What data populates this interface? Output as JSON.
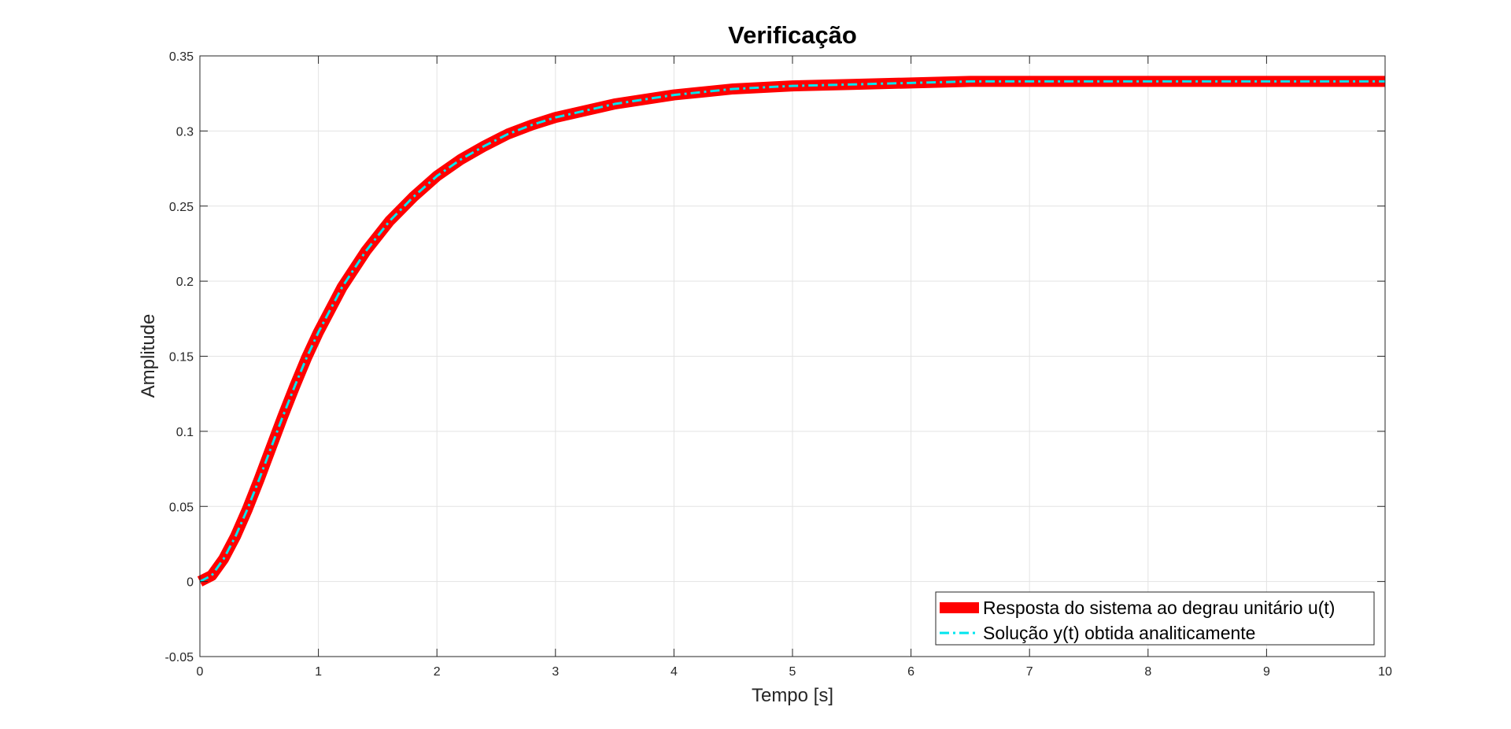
{
  "chart_data": {
    "type": "line",
    "title": "Verificação",
    "xlabel": "Tempo [s]",
    "ylabel": "Amplitude",
    "xlim": [
      0,
      10
    ],
    "ylim": [
      -0.05,
      0.35
    ],
    "xticks": [
      0,
      1,
      2,
      3,
      4,
      5,
      6,
      7,
      8,
      9,
      10
    ],
    "xtick_labels": [
      "0",
      "1",
      "2",
      "3",
      "4",
      "5",
      "6",
      "7",
      "8",
      "9",
      "10"
    ],
    "yticks": [
      -0.05,
      0,
      0.05,
      0.1,
      0.15,
      0.2,
      0.25,
      0.3,
      0.35
    ],
    "ytick_labels": [
      "-0.05",
      "0",
      "0.05",
      "0.1",
      "0.15",
      "0.2",
      "0.25",
      "0.3",
      "0.35"
    ],
    "grid": true,
    "legend_position": "bottom-right",
    "series": [
      {
        "name": "Resposta do sistema ao degrau unitário u(t)",
        "color": "#ff0000",
        "style": "solid-thick",
        "x": [
          0,
          0.1,
          0.2,
          0.3,
          0.4,
          0.5,
          0.6,
          0.7,
          0.8,
          0.9,
          1.0,
          1.2,
          1.4,
          1.6,
          1.8,
          2.0,
          2.2,
          2.4,
          2.6,
          2.8,
          3.0,
          3.5,
          4.0,
          4.5,
          5.0,
          5.5,
          6.0,
          6.5,
          7.0,
          7.5,
          8.0,
          8.5,
          9.0,
          9.5,
          10.0
        ],
        "y": [
          0,
          0.004,
          0.015,
          0.03,
          0.048,
          0.068,
          0.089,
          0.11,
          0.13,
          0.149,
          0.166,
          0.196,
          0.22,
          0.24,
          0.256,
          0.27,
          0.281,
          0.29,
          0.298,
          0.304,
          0.309,
          0.318,
          0.324,
          0.328,
          0.33,
          0.331,
          0.332,
          0.333,
          0.333,
          0.333,
          0.333,
          0.333,
          0.333,
          0.333,
          0.333
        ]
      },
      {
        "name": "Solução y(t) obtida analiticamente",
        "color": "#00e5ee",
        "style": "dash-dot",
        "x": [
          0,
          0.1,
          0.2,
          0.3,
          0.4,
          0.5,
          0.6,
          0.7,
          0.8,
          0.9,
          1.0,
          1.2,
          1.4,
          1.6,
          1.8,
          2.0,
          2.2,
          2.4,
          2.6,
          2.8,
          3.0,
          3.5,
          4.0,
          4.5,
          5.0,
          5.5,
          6.0,
          6.5,
          7.0,
          7.5,
          8.0,
          8.5,
          9.0,
          9.5,
          10.0
        ],
        "y": [
          0,
          0.004,
          0.015,
          0.03,
          0.048,
          0.068,
          0.089,
          0.11,
          0.13,
          0.149,
          0.166,
          0.196,
          0.22,
          0.24,
          0.256,
          0.27,
          0.281,
          0.29,
          0.298,
          0.304,
          0.309,
          0.318,
          0.324,
          0.328,
          0.33,
          0.331,
          0.332,
          0.333,
          0.333,
          0.333,
          0.333,
          0.333,
          0.333,
          0.333,
          0.333
        ]
      }
    ]
  }
}
